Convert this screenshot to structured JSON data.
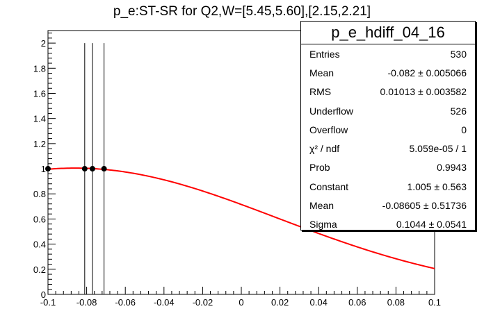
{
  "chart_data": {
    "type": "scatter",
    "title": "p_e:ST-SR for Q2,W=[5.45,5.60],[2.15,2.21]",
    "xlim": [
      -0.1,
      0.1
    ],
    "ylim": [
      0,
      2.1
    ],
    "x_ticks": [
      -0.1,
      -0.08,
      -0.06,
      -0.04,
      -0.02,
      0,
      0.02,
      0.04,
      0.06,
      0.08,
      0.1
    ],
    "x_tick_labels": [
      "-0.1",
      "-0.08",
      "-0.06",
      "-0.04",
      "-0.02",
      "0",
      "0.02",
      "0.04",
      "0.06",
      "0.08",
      "0.1"
    ],
    "y_ticks": [
      0,
      0.2,
      0.4,
      0.6,
      0.8,
      1,
      1.2,
      1.4,
      1.6,
      1.8,
      2
    ],
    "y_tick_labels": [
      "0",
      "0.2",
      "0.4",
      "0.6",
      "0.8",
      "1",
      "1.2",
      "1.4",
      "1.6",
      "1.8",
      "2"
    ],
    "points": [
      {
        "x": -0.1,
        "y": 1,
        "err_low": 0,
        "err_high": 0
      },
      {
        "x": -0.081,
        "y": 1,
        "err_low": 1,
        "err_high": 1
      },
      {
        "x": -0.077,
        "y": 1,
        "err_low": 1,
        "err_high": 1
      },
      {
        "x": -0.071,
        "y": 1,
        "err_low": 1,
        "err_high": 1
      }
    ],
    "fit": {
      "function": "gaus",
      "constant": 1.005,
      "mean": -0.08605,
      "sigma": 0.1044,
      "color": "#ff0000"
    },
    "marker_color": "#000000"
  },
  "stats": {
    "name": "p_e_hdiff_04_16",
    "rows": [
      {
        "label": "Entries",
        "value": "530"
      },
      {
        "label": "Mean",
        "value": "-0.082 ± 0.005066"
      },
      {
        "label": "RMS",
        "value": "0.01013 ± 0.003582"
      },
      {
        "label": "Underflow",
        "value": "526"
      },
      {
        "label": "Overflow",
        "value": "0"
      },
      {
        "label": "χ² / ndf",
        "value": "5.059e-05 / 1"
      },
      {
        "label": "Prob",
        "value": "0.9943"
      },
      {
        "label": "Constant",
        "value": "1.005 ± 0.563"
      },
      {
        "label": "Mean",
        "value": "-0.08605 ± 0.51736"
      },
      {
        "label": "Sigma",
        "value": "0.1044 ± 0.0541"
      }
    ]
  }
}
